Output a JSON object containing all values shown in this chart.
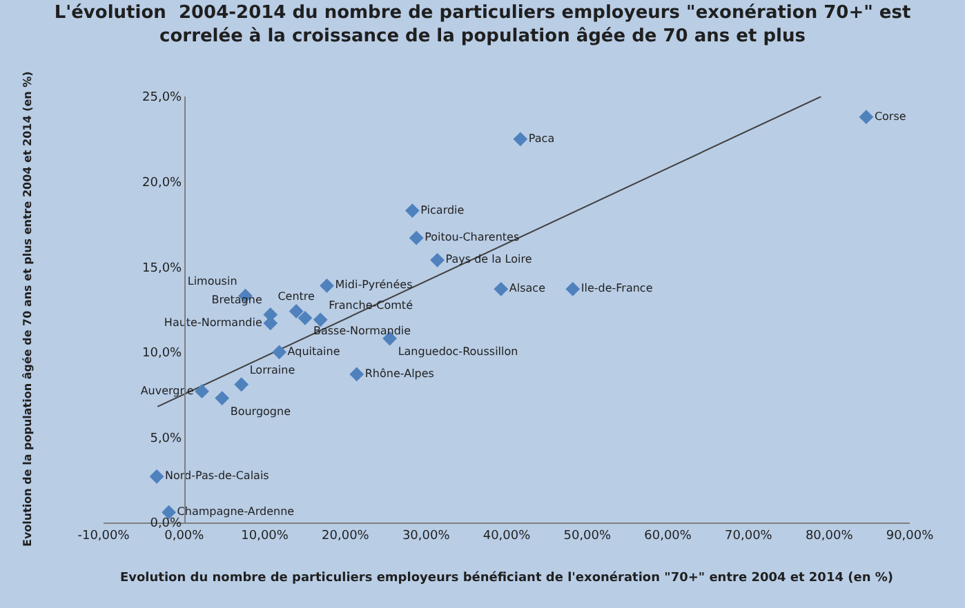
{
  "chart_data": {
    "type": "scatter",
    "title": "L'évolution  2004-2014 du nombre de particuliers employeurs \"exonération 70+\" est correlée à la croissance de la population âgée de 70 ans et plus",
    "xlabel": "Evolution du nombre de particuliers employeurs bénéficiant de l'exonération \"70+\" entre 2004 et 2014 (en %)",
    "ylabel": "Evolution de la population âgée de 70 ans et plus entre 2004 et 2014 (en %)",
    "xlim": [
      -10,
      90
    ],
    "ylim": [
      0,
      25
    ],
    "xticks": [
      {
        "value": -10,
        "label": "-10,00%"
      },
      {
        "value": 0,
        "label": "0,00%"
      },
      {
        "value": 10,
        "label": "10,00%"
      },
      {
        "value": 20,
        "label": "20,00%"
      },
      {
        "value": 30,
        "label": "30,00%"
      },
      {
        "value": 40,
        "label": "40,00%"
      },
      {
        "value": 50,
        "label": "50,00%"
      },
      {
        "value": 60,
        "label": "60,00%"
      },
      {
        "value": 70,
        "label": "70,00%"
      },
      {
        "value": 80,
        "label": "80,00%"
      },
      {
        "value": 90,
        "label": "90,00%"
      }
    ],
    "yticks": [
      {
        "value": 0,
        "label": "0,0%"
      },
      {
        "value": 5,
        "label": "5,0%"
      },
      {
        "value": 10,
        "label": "10,0%"
      },
      {
        "value": 15,
        "label": "15,0%"
      },
      {
        "value": 20,
        "label": "20,0%"
      },
      {
        "value": 25,
        "label": "25,0%"
      }
    ],
    "grid": false,
    "marker": "diamond",
    "series": [
      {
        "type": "line",
        "color": "#404040",
        "x": [
          -3.3,
          79.0
        ],
        "values": [
          6.8,
          25.0
        ],
        "marker": "none",
        "line_style": "solid"
      },
      {
        "color": "#4f81bd",
        "x": [
          84.6,
          41.7,
          28.3,
          28.8,
          31.4,
          17.7,
          39.3,
          48.2,
          7.6,
          13.9,
          10.7,
          16.9,
          15.0,
          10.7,
          25.5,
          11.8,
          7.1,
          21.4,
          2.2,
          4.7,
          -3.4,
          -1.9
        ],
        "values": [
          23.8,
          22.5,
          18.3,
          16.7,
          15.4,
          13.9,
          13.7,
          13.7,
          13.3,
          12.4,
          12.2,
          11.9,
          12.0,
          11.7,
          10.8,
          10.0,
          8.1,
          8.7,
          7.7,
          7.3,
          2.7,
          0.6
        ],
        "value_labels": [
          "Corse",
          "Paca",
          "Picardie",
          "Poitou-Charentes",
          "Pays de la Loire",
          "Midi-Pyrénées",
          "Alsace",
          "Ile-de-France",
          "Limousin",
          "Centre",
          "Bretagne",
          "Franche-Comté",
          "Basse-Normandie",
          "Haute-Normandie",
          "Languedoc-Roussillon",
          "Aquitaine",
          "Lorraine",
          "Rhône-Alpes",
          "Auvergne",
          "Bourgogne",
          "Nord-Pas-de-Calais",
          "Champagne-Ardenne"
        ]
      }
    ]
  }
}
